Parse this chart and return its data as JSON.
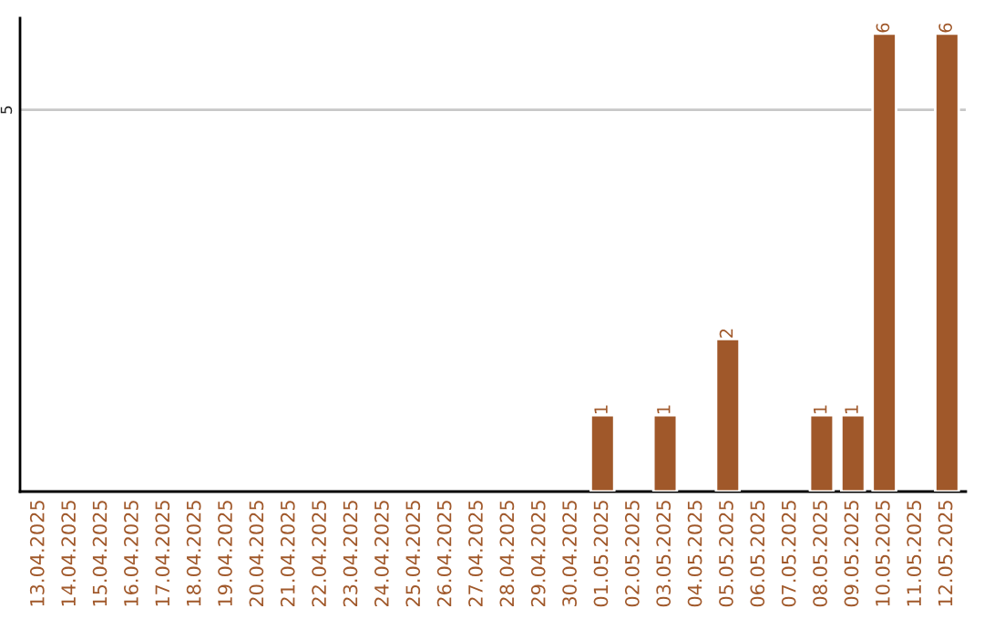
{
  "chart_data": {
    "type": "bar",
    "categories": [
      "13.04.2025",
      "14.04.2025",
      "15.04.2025",
      "16.04.2025",
      "17.04.2025",
      "18.04.2025",
      "19.04.2025",
      "20.04.2025",
      "21.04.2025",
      "22.04.2025",
      "23.04.2025",
      "24.04.2025",
      "25.04.2025",
      "26.04.2025",
      "27.04.2025",
      "28.04.2025",
      "29.04.2025",
      "30.04.2025",
      "01.05.2025",
      "02.05.2025",
      "03.05.2025",
      "04.05.2025",
      "05.05.2025",
      "06.05.2025",
      "07.05.2025",
      "08.05.2025",
      "09.05.2025",
      "10.05.2025",
      "11.05.2025",
      "12.05.2025"
    ],
    "values": [
      null,
      null,
      null,
      null,
      null,
      null,
      null,
      null,
      null,
      null,
      null,
      null,
      null,
      null,
      null,
      null,
      null,
      null,
      1,
      null,
      1,
      null,
      2,
      null,
      null,
      1,
      1,
      6,
      null,
      6
    ],
    "value_labels": [
      null,
      null,
      null,
      null,
      null,
      null,
      null,
      null,
      null,
      null,
      null,
      null,
      null,
      null,
      null,
      null,
      null,
      null,
      "1",
      null,
      "1",
      null,
      "2",
      null,
      null,
      "1",
      "1",
      "6",
      null,
      "6"
    ],
    "color": "#a0582a",
    "ylim": [
      0,
      6.2
    ],
    "yticks": [
      5
    ],
    "grid": "y"
  }
}
